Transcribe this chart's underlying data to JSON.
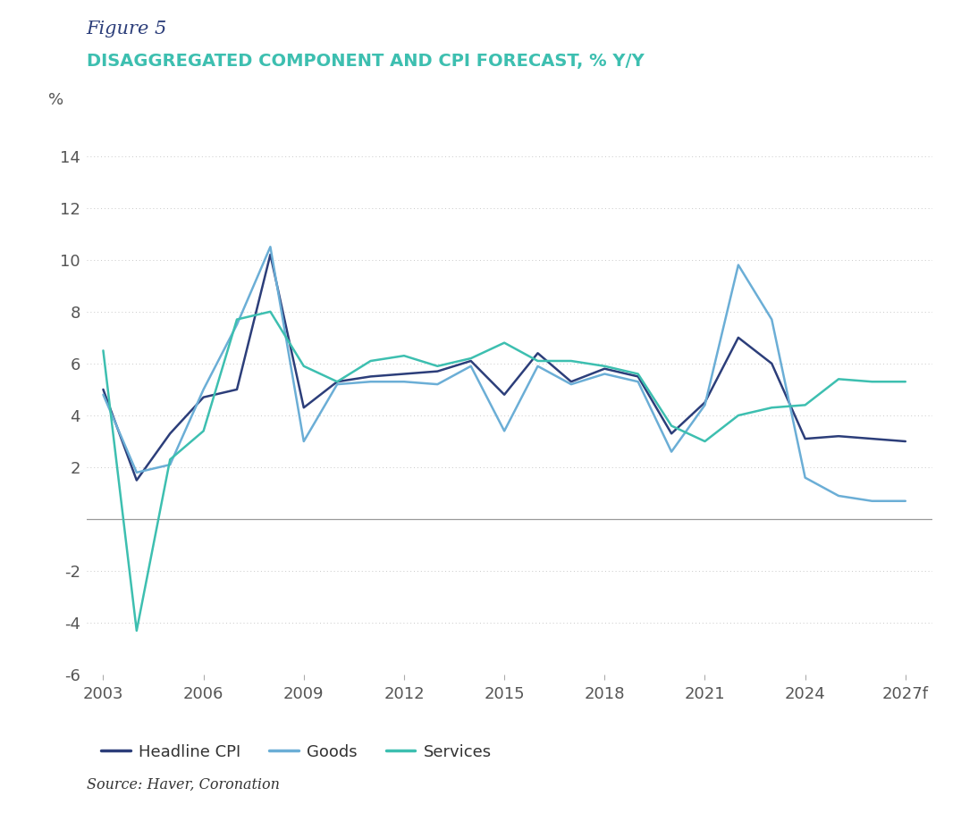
{
  "title_fig": "Figure 5",
  "title_main": "DISAGGREGATED COMPONENT AND CPI FORECAST, % Y/Y",
  "source": "Source: Haver, Coronation",
  "ylabel": "%",
  "xlim": [
    2002.5,
    2027.8
  ],
  "ylim": [
    -6,
    15
  ],
  "yticks": [
    -6,
    -4,
    -2,
    0,
    2,
    4,
    6,
    8,
    10,
    12,
    14
  ],
  "xticks": [
    2003,
    2006,
    2009,
    2012,
    2015,
    2018,
    2021,
    2024,
    2027
  ],
  "xtick_labels": [
    "2003",
    "2006",
    "2009",
    "2012",
    "2015",
    "2018",
    "2021",
    "2024",
    "2027f"
  ],
  "headline_cpi": {
    "x": [
      2003,
      2004,
      2005,
      2006,
      2007,
      2008,
      2009,
      2010,
      2011,
      2012,
      2013,
      2014,
      2015,
      2016,
      2017,
      2018,
      2019,
      2020,
      2021,
      2022,
      2023,
      2024,
      2025,
      2026,
      2027
    ],
    "y": [
      5.0,
      1.5,
      3.3,
      4.7,
      5.0,
      10.2,
      4.3,
      5.3,
      5.5,
      5.6,
      5.7,
      6.1,
      4.8,
      6.4,
      5.3,
      5.8,
      5.5,
      3.3,
      4.5,
      7.0,
      6.0,
      3.1,
      3.2,
      3.1,
      3.0
    ],
    "color": "#2c3e7a",
    "linewidth": 1.8,
    "label": "Headline CPI"
  },
  "goods": {
    "x": [
      2003,
      2004,
      2005,
      2006,
      2007,
      2008,
      2009,
      2010,
      2011,
      2012,
      2013,
      2014,
      2015,
      2016,
      2017,
      2018,
      2019,
      2020,
      2021,
      2022,
      2023,
      2024,
      2025,
      2026,
      2027
    ],
    "y": [
      4.8,
      1.8,
      2.1,
      5.0,
      7.5,
      10.5,
      3.0,
      5.2,
      5.3,
      5.3,
      5.2,
      5.9,
      3.4,
      5.9,
      5.2,
      5.6,
      5.3,
      2.6,
      4.4,
      9.8,
      7.7,
      1.6,
      0.9,
      0.7,
      0.7
    ],
    "color": "#6baed6",
    "linewidth": 1.8,
    "label": "Goods"
  },
  "services": {
    "x": [
      2003,
      2004,
      2005,
      2006,
      2007,
      2008,
      2009,
      2010,
      2011,
      2012,
      2013,
      2014,
      2015,
      2016,
      2017,
      2018,
      2019,
      2020,
      2021,
      2022,
      2023,
      2024,
      2025,
      2026,
      2027
    ],
    "y": [
      6.5,
      -4.3,
      2.3,
      3.4,
      7.7,
      8.0,
      5.9,
      5.3,
      6.1,
      6.3,
      5.9,
      6.2,
      6.8,
      6.1,
      6.1,
      5.9,
      5.6,
      3.6,
      3.0,
      4.0,
      4.3,
      4.4,
      5.4,
      5.3,
      5.3
    ],
    "color": "#3dbfb0",
    "linewidth": 1.8,
    "label": "Services"
  },
  "bg_color": "#ffffff",
  "grid_color": "#c8c8c8",
  "zeroline_color": "#999999",
  "tick_color": "#555555",
  "title_fig_color": "#2c3e7a",
  "title_main_color": "#3dbfb0",
  "text_color": "#333333"
}
